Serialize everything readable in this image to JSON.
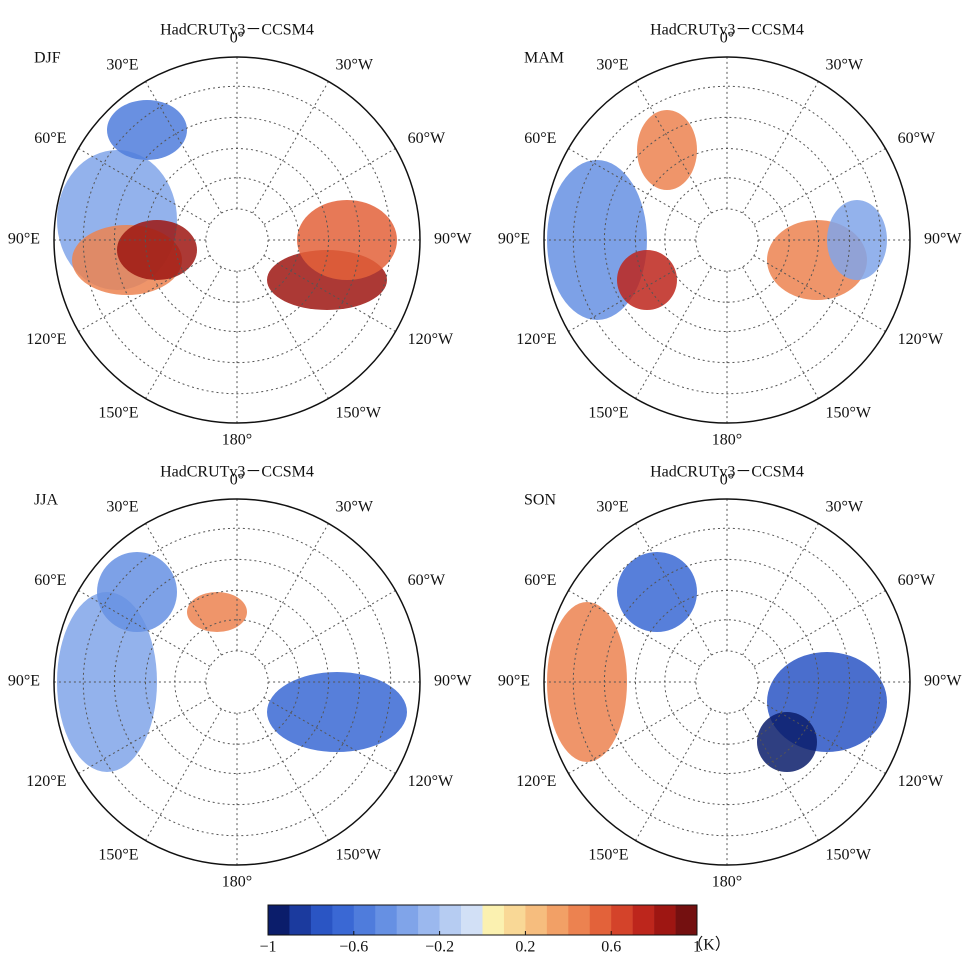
{
  "chart_data": {
    "type": "polar-maps",
    "longitude_labels": [
      "0°",
      "30°W",
      "60°W",
      "90°W",
      "120°W",
      "150°W",
      "180°",
      "150°E",
      "120°E",
      "90°E",
      "60°E",
      "30°E"
    ],
    "panels": [
      {
        "title": "HadCRUTv3－CCSM4",
        "season": "DJF"
      },
      {
        "title": "HadCRUTv3－CCSM4",
        "season": "MAM"
      },
      {
        "title": "HadCRUTv3－CCSM4",
        "season": "JJA"
      },
      {
        "title": "HadCRUTv3－CCSM4",
        "season": "SON"
      }
    ],
    "colorbar": {
      "lim": [
        -1,
        1
      ],
      "ticks": [
        {
          "value": -1,
          "label": "−1"
        },
        {
          "value": -0.6,
          "label": "−0.6"
        },
        {
          "value": -0.2,
          "label": "−0.2"
        },
        0.2,
        0.6,
        1
      ],
      "unit": "（K）",
      "colors": [
        "#0b1d6b",
        "#1b3a9e",
        "#2a55c4",
        "#3a68d4",
        "#4f7cdc",
        "#6690e3",
        "#80a4e9",
        "#9bb8ee",
        "#b6ccf2",
        "#d2e0f6",
        "#fbf1b0",
        "#f9d896",
        "#f6bd7e",
        "#f2a066",
        "#ec8250",
        "#e3623a",
        "#d4432a",
        "#bd261c",
        "#9e1612",
        "#741010"
      ]
    }
  }
}
